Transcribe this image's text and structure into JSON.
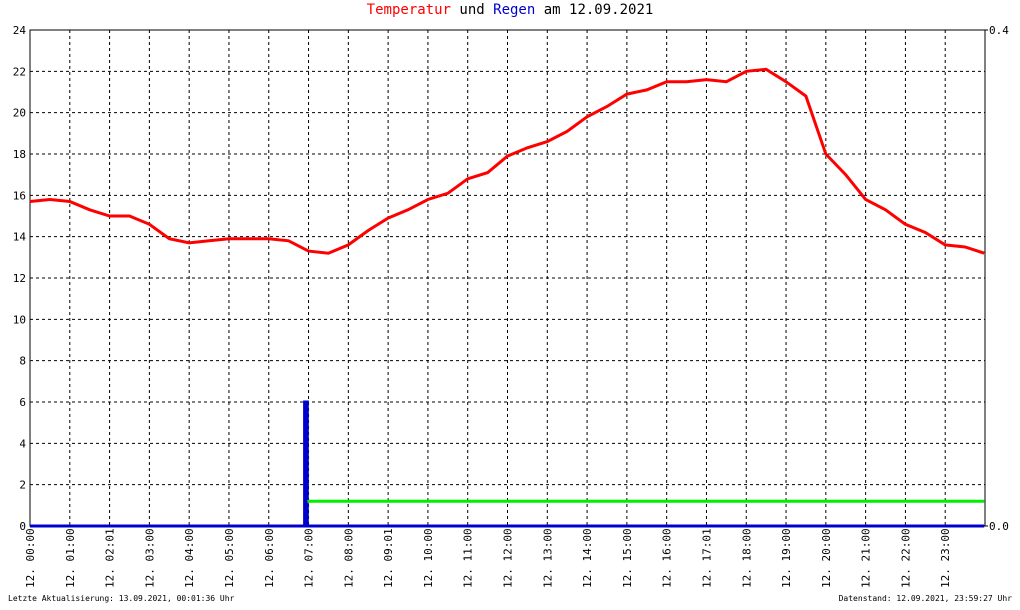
{
  "chart_data": {
    "type": "line",
    "title_words": [
      "und",
      "am 12.09.2021"
    ],
    "footer_left": "Letzte Aktualisierung: 13.09.2021, 00:01:36 Uhr",
    "footer_right": "Datenstand: 12.09.2021, 23:59:27 Uhr",
    "xlim": [
      0,
      24
    ],
    "xticks": [
      {
        "value": 0,
        "label": "12. 00:00"
      },
      {
        "value": 1,
        "label": "12. 01:00"
      },
      {
        "value": 2,
        "label": "12. 02:01"
      },
      {
        "value": 3,
        "label": "12. 03:00"
      },
      {
        "value": 4,
        "label": "12. 04:00"
      },
      {
        "value": 5,
        "label": "12. 05:00"
      },
      {
        "value": 6,
        "label": "12. 06:00"
      },
      {
        "value": 7,
        "label": "12. 07:00"
      },
      {
        "value": 8,
        "label": "12. 08:00"
      },
      {
        "value": 9,
        "label": "12. 09:01"
      },
      {
        "value": 10,
        "label": "12. 10:00"
      },
      {
        "value": 11,
        "label": "12. 11:00"
      },
      {
        "value": 12,
        "label": "12. 12:00"
      },
      {
        "value": 13,
        "label": "12. 13:00"
      },
      {
        "value": 14,
        "label": "12. 14:00"
      },
      {
        "value": 15,
        "label": "12. 15:00"
      },
      {
        "value": 16,
        "label": "12. 16:00"
      },
      {
        "value": 17,
        "label": "12. 17:01"
      },
      {
        "value": 18,
        "label": "12. 18:00"
      },
      {
        "value": 19,
        "label": "12. 19:00"
      },
      {
        "value": 20,
        "label": "12. 20:00"
      },
      {
        "value": 21,
        "label": "12. 21:00"
      },
      {
        "value": 22,
        "label": "12. 22:00"
      },
      {
        "value": 23,
        "label": "12. 23:00"
      }
    ],
    "ylim": [
      0,
      24
    ],
    "yticks": [
      0,
      2,
      4,
      6,
      8,
      10,
      12,
      14,
      16,
      18,
      20,
      22,
      24
    ],
    "y2lim": [
      0,
      0.4
    ],
    "y2ticks": [
      {
        "value": 0,
        "label": "0.0"
      },
      {
        "value": 0.4,
        "label": "0.4"
      }
    ],
    "grid": true,
    "series": [
      {
        "name": "Temperatur",
        "color": "#ff0000",
        "x": [
          0,
          0.5,
          1,
          1.5,
          2,
          2.5,
          3,
          3.5,
          4,
          4.5,
          5,
          5.5,
          6,
          6.5,
          7,
          7.5,
          8,
          8.5,
          9,
          9.5,
          10,
          10.5,
          11,
          11.5,
          12,
          12.5,
          13,
          13.5,
          14,
          14.5,
          15,
          15.5,
          16,
          16.5,
          17,
          17.5,
          18,
          18.5,
          19,
          19.5,
          20,
          20.5,
          21,
          21.5,
          22,
          22.5,
          23,
          23.5,
          23.98
        ],
        "values": [
          15.7,
          15.8,
          15.7,
          15.3,
          15.0,
          15.0,
          14.6,
          13.9,
          13.7,
          13.8,
          13.9,
          13.9,
          13.9,
          13.8,
          13.3,
          13.2,
          13.6,
          14.3,
          14.9,
          15.3,
          15.8,
          16.1,
          16.8,
          17.1,
          17.9,
          18.3,
          18.6,
          19.1,
          19.8,
          20.3,
          20.9,
          21.1,
          21.5,
          21.5,
          21.6,
          21.5,
          22.0,
          22.1,
          21.5,
          20.8,
          18.0,
          17.0,
          15.8,
          15.3,
          14.6,
          14.2,
          13.6,
          13.5,
          13.2
        ]
      },
      {
        "name": "Regen",
        "color": "#0000cc",
        "axis": "y2",
        "x": [
          0,
          6.9,
          6.9,
          6.97,
          6.97,
          23.98
        ],
        "values": [
          0,
          0,
          0.1,
          0.1,
          0,
          0
        ]
      },
      {
        "color": "#00ee00",
        "axis": "y2",
        "x": [
          6.97,
          23.98
        ],
        "values": [
          0.02,
          0.02
        ]
      }
    ]
  }
}
